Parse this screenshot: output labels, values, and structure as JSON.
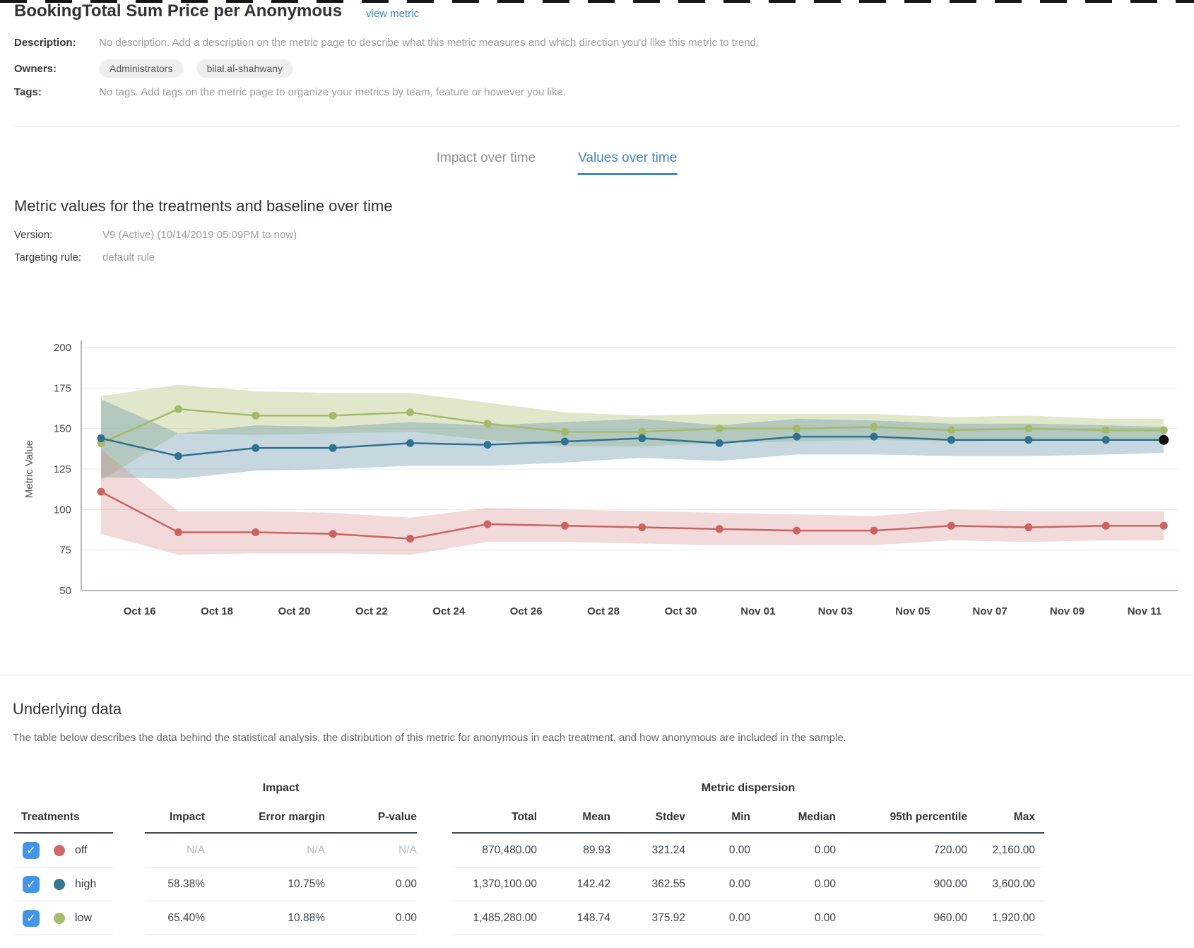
{
  "header": {
    "title": "BookingTotal Sum Price per Anonymous",
    "view_metric_link": "view metric",
    "description_label": "Description:",
    "description": "No description. Add a description on the metric page to describe what this metric measures and which direction you'd like this metric to trend.",
    "owners_label": "Owners:",
    "owners": [
      "Administrators",
      "bilal.al-shahwany"
    ],
    "tags_label": "Tags:",
    "tags": "No tags. Add tags on the metric page to organize your metrics by team, feature or however you like."
  },
  "tabs": [
    {
      "label": "Impact over time",
      "active": false
    },
    {
      "label": "Values over time",
      "active": true
    }
  ],
  "section": {
    "heading": "Metric values for the treatments and baseline over time",
    "version_label": "Version:",
    "version_value": "V9 (Active) (10/14/2019 05:09PM to now)",
    "targeting_label": "Targeting rule:",
    "targeting_value": "default rule"
  },
  "chart_data": {
    "type": "line",
    "title": "Metric values for the treatments and baseline over time",
    "xlabel": "",
    "ylabel": "Metric Value",
    "ylim": [
      50,
      200
    ],
    "yticks": [
      200,
      175,
      150,
      125,
      100,
      75,
      50
    ],
    "grid": true,
    "legend_position": "none",
    "x_days": [
      0,
      2,
      4,
      6,
      8,
      10,
      12,
      14,
      16,
      18,
      20,
      22,
      24,
      26,
      27.5
    ],
    "xtick_days": [
      1,
      3,
      5,
      7,
      9,
      11,
      13,
      15,
      17,
      19,
      21,
      23,
      25,
      27
    ],
    "xtick_labels": [
      "Oct 16",
      "Oct 18",
      "Oct 20",
      "Oct 22",
      "Oct 24",
      "Oct 26",
      "Oct 28",
      "Oct 30",
      "Nov 01",
      "Nov 03",
      "Nov 05",
      "Nov 07",
      "Nov 09",
      "Nov 11"
    ],
    "series": [
      {
        "name": "low",
        "color": "#a4ba68",
        "band_color": "#b6c581",
        "band_opacity": 0.42,
        "values": [
          141,
          162,
          158,
          158,
          160,
          153,
          148,
          148,
          150,
          150,
          151,
          149,
          150,
          149,
          149
        ],
        "band_low": [
          118,
          147,
          146,
          147,
          148,
          143,
          139,
          139,
          141,
          142,
          143,
          142,
          143,
          143,
          143
        ],
        "band_high": [
          170,
          177,
          173,
          172,
          172,
          166,
          160,
          158,
          159,
          159,
          159,
          157,
          158,
          156,
          156
        ]
      },
      {
        "name": "high",
        "color": "#2f7190",
        "band_color": "#6897ac",
        "band_opacity": 0.38,
        "values": [
          144,
          133,
          138,
          138,
          141,
          140,
          142,
          144,
          141,
          145,
          145,
          143,
          143,
          143,
          143
        ],
        "band_low": [
          120,
          119,
          124,
          125,
          127,
          127,
          129,
          132,
          130,
          134,
          134,
          133,
          133,
          134,
          135
        ],
        "band_high": [
          168,
          147,
          152,
          151,
          154,
          152,
          154,
          156,
          152,
          156,
          155,
          153,
          153,
          152,
          151
        ]
      },
      {
        "name": "off",
        "color": "#cb6361",
        "band_color": "#d88c8c",
        "band_opacity": 0.32,
        "values": [
          111,
          86,
          86,
          85,
          82,
          91,
          90,
          89,
          88,
          87,
          87,
          90,
          89,
          90,
          90
        ],
        "band_low": [
          85,
          72,
          73,
          73,
          72,
          80,
          80,
          79,
          78,
          78,
          78,
          81,
          80,
          81,
          81
        ],
        "band_high": [
          137,
          99,
          99,
          98,
          95,
          101,
          100,
          99,
          98,
          97,
          96,
          100,
          99,
          99,
          99
        ]
      }
    ],
    "last_point_highlight": {
      "series": "high",
      "color": "#111111"
    }
  },
  "underlying": {
    "heading": "Underlying data",
    "description": "The table below describes the data behind the statistical analysis, the distribution of this metric for anonymous in each treatment, and how anonymous are included in the sample."
  },
  "table": {
    "impact_group_label": "Impact",
    "dispersion_group_label": "Metric dispersion",
    "treatments_header": "Treatments",
    "impact_columns": [
      "Impact",
      "Error margin",
      "P-value"
    ],
    "dispersion_columns": [
      "Total",
      "Mean",
      "Stdev",
      "Min",
      "Median",
      "95th percentile",
      "Max"
    ],
    "rows": [
      {
        "treatment": "off",
        "color": "#cf6a68",
        "checked": true,
        "muted": true,
        "impact": "N/A",
        "error_margin": "N/A",
        "p_value": "N/A",
        "total": "870,480.00",
        "mean": "89.93",
        "stdev": "321.24",
        "min": "0.00",
        "median": "0.00",
        "p95": "720.00",
        "max": "2,160.00"
      },
      {
        "treatment": "high",
        "color": "#38758f",
        "checked": true,
        "muted": false,
        "impact": "58.38%",
        "error_margin": "10.75%",
        "p_value": "0.00",
        "total": "1,370,100.00",
        "mean": "142.42",
        "stdev": "362.55",
        "min": "0.00",
        "median": "0.00",
        "p95": "900.00",
        "max": "3,600.00"
      },
      {
        "treatment": "low",
        "color": "#a7bd6e",
        "checked": true,
        "muted": false,
        "impact": "65.40%",
        "error_margin": "10.88%",
        "p_value": "0.00",
        "total": "1,485,280.00",
        "mean": "148.74",
        "stdev": "375.92",
        "min": "0.00",
        "median": "0.00",
        "p95": "960.00",
        "max": "1,920.00"
      }
    ]
  }
}
